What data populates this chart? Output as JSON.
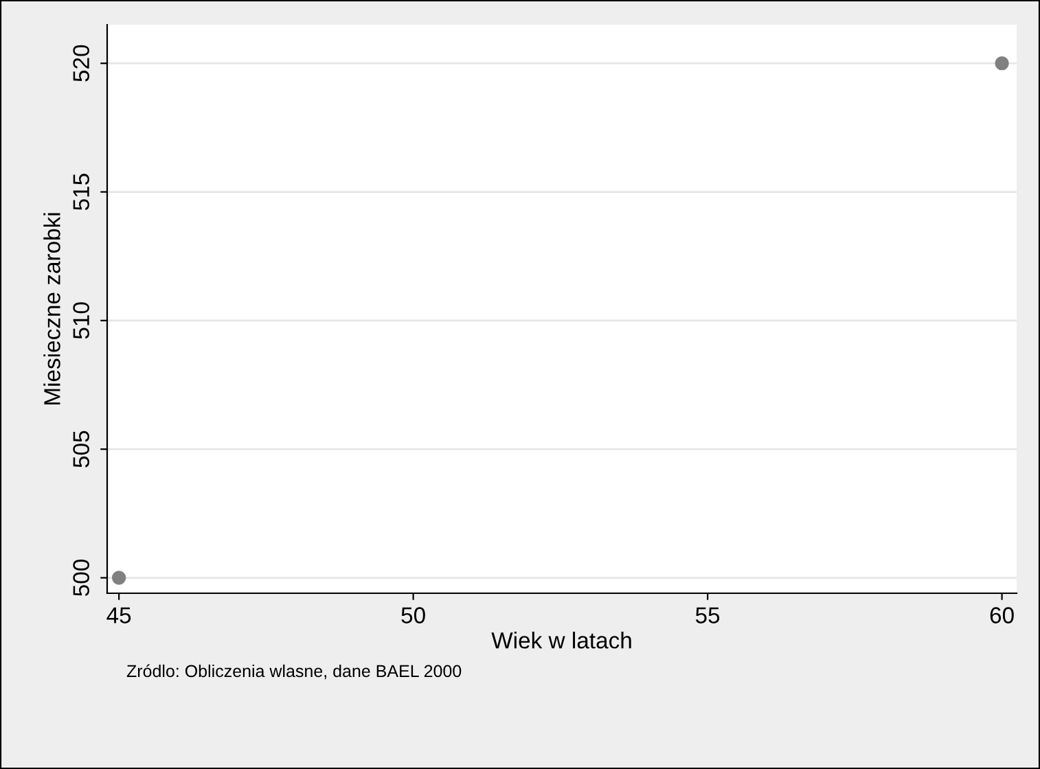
{
  "chart_data": {
    "type": "scatter",
    "xlabel": "Wiek w latach",
    "ylabel": "Miesieczne zarobki",
    "x": [
      45,
      60
    ],
    "series": [
      {
        "color": "#808080",
        "values": [
          500,
          520
        ]
      }
    ],
    "xlim": [
      44.8,
      60.25
    ],
    "xticks": [
      45,
      50,
      55,
      60
    ],
    "ylim": [
      499.4,
      521.5
    ],
    "yticks": [
      500,
      505,
      510,
      515,
      520
    ],
    "grid": "y",
    "marker": "circle",
    "annotations": [
      "Zródlo: Obliczenia wlasne, dane BAEL 2000"
    ]
  }
}
